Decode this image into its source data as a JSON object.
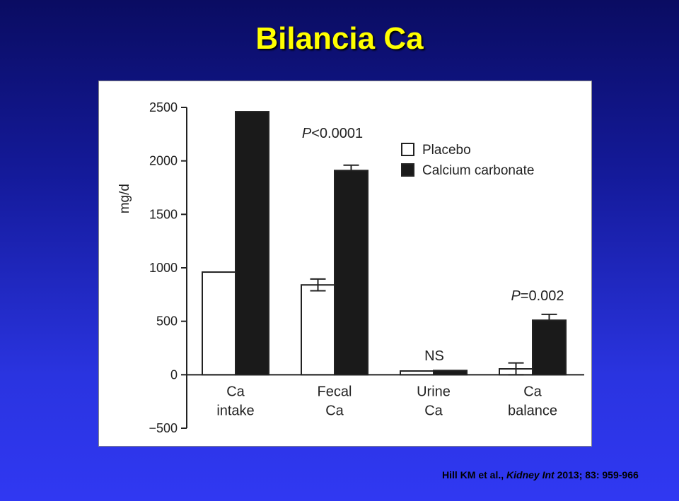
{
  "slide": {
    "title": "Bilancia Ca",
    "citation": {
      "authors": "Hill KM et al., ",
      "journal": "Kidney Int",
      "details": " 2013; 83: 959-966"
    }
  },
  "colors": {
    "title": "#ffff00",
    "background_top": "#0a0c62",
    "background_bottom": "#3038f2",
    "placebo_fill": "#ffffff",
    "calcium_fill": "#1a1a1a"
  },
  "chart_data": {
    "type": "bar",
    "ylabel": "mg/d",
    "xlabel": "",
    "ylim": [
      -500,
      2500
    ],
    "yticks": [
      -500,
      0,
      500,
      1000,
      1500,
      2000,
      2500
    ],
    "ytick_labels": [
      "−500",
      "0",
      "500",
      "1000",
      "1500",
      "2000",
      "2500"
    ],
    "categories": [
      [
        "Ca",
        "intake"
      ],
      [
        "Fecal",
        "Ca"
      ],
      [
        "Urine",
        "Ca"
      ],
      [
        "Ca",
        "balance"
      ]
    ],
    "series": [
      {
        "name": "Placebo",
        "fill": "#ffffff",
        "values": [
          960,
          840,
          35,
          55
        ],
        "errors": [
          0,
          55,
          0,
          55
        ]
      },
      {
        "name": "Calcium carbonate",
        "fill": "#1a1a1a",
        "values": [
          2460,
          1910,
          40,
          510
        ],
        "errors": [
          0,
          50,
          0,
          55
        ]
      }
    ],
    "annotations": [
      {
        "category": 1,
        "text": "P<0.0001"
      },
      {
        "category": 2,
        "text": "NS"
      },
      {
        "category": 3,
        "text": "P=0.002"
      }
    ],
    "legend": {
      "position": "top-right",
      "entries": [
        "Placebo",
        "Calcium carbonate"
      ]
    },
    "grid": false
  }
}
